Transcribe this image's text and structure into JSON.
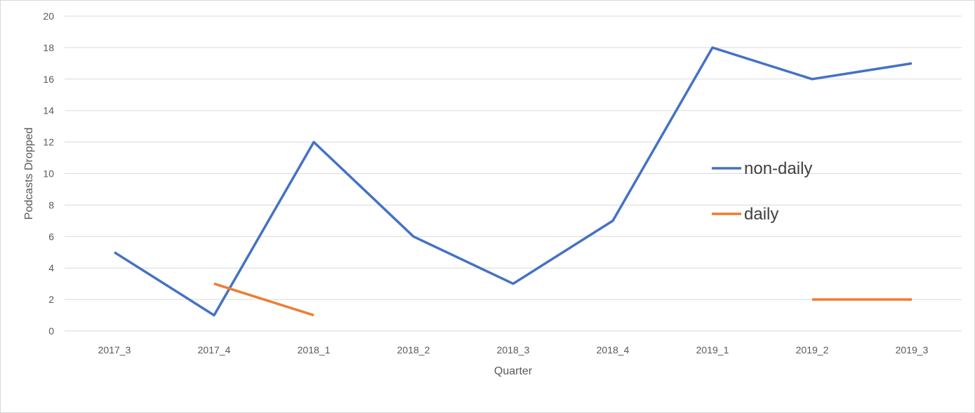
{
  "chart_data": {
    "type": "line",
    "title": "",
    "xlabel": "Quarter",
    "ylabel": "Podcasts Dropped",
    "categories": [
      "2017_3",
      "2017_4",
      "2018_1",
      "2018_2",
      "2018_3",
      "2018_4",
      "2019_1",
      "2019_2",
      "2019_3"
    ],
    "ylim": [
      0,
      20
    ],
    "yticks": [
      0,
      2,
      4,
      6,
      8,
      10,
      12,
      14,
      16,
      18,
      20
    ],
    "grid": true,
    "legend_position": "right",
    "series": [
      {
        "name": "non-daily",
        "color": "#4472C4",
        "values": [
          5,
          1,
          12,
          6,
          3,
          7,
          18,
          16,
          17
        ]
      },
      {
        "name": "daily",
        "color": "#ED7D31",
        "values": [
          null,
          3,
          1,
          null,
          null,
          null,
          null,
          2,
          2
        ]
      }
    ]
  }
}
